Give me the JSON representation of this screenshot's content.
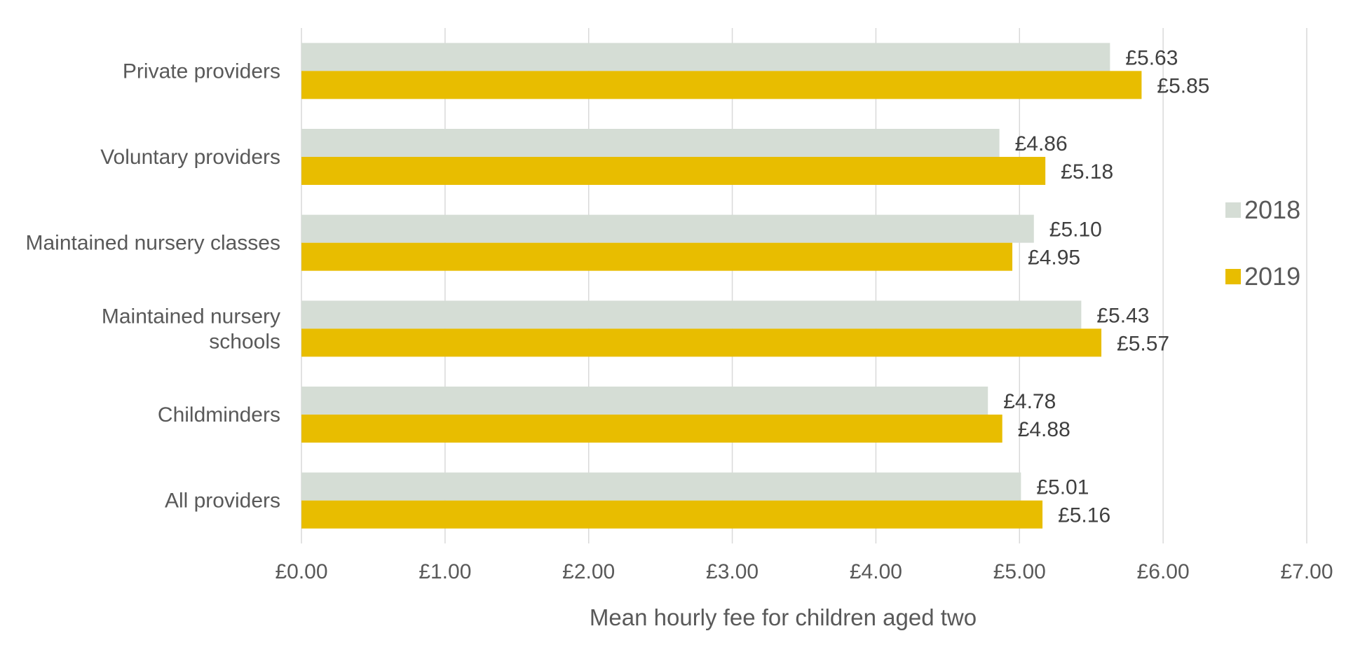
{
  "chart_data": {
    "type": "bar",
    "orientation": "horizontal",
    "categories": [
      "Private providers",
      "Voluntary providers",
      "Maintained nursery classes",
      "Maintained nursery schools",
      "Childminders",
      "All providers"
    ],
    "category_lines": [
      [
        "Private providers"
      ],
      [
        "Voluntary providers"
      ],
      [
        "Maintained nursery classes"
      ],
      [
        "Maintained nursery",
        "schools"
      ],
      [
        "Childminders"
      ],
      [
        "All providers"
      ]
    ],
    "series": [
      {
        "name": "2018",
        "color": "#d5ddd5",
        "values": [
          5.63,
          4.86,
          5.1,
          5.43,
          4.78,
          5.01
        ],
        "labels": [
          "£5.63",
          "£4.86",
          "£5.10",
          "£5.43",
          "£4.78",
          "£5.01"
        ]
      },
      {
        "name": "2019",
        "color": "#e8bd00",
        "values": [
          5.85,
          5.18,
          4.95,
          5.57,
          4.88,
          5.16
        ],
        "labels": [
          "£5.85",
          "£5.18",
          "£4.95",
          "£5.57",
          "£4.88",
          "£5.16"
        ]
      }
    ],
    "x_ticks": [
      "£0.00",
      "£1.00",
      "£2.00",
      "£3.00",
      "£4.00",
      "£5.00",
      "£6.00",
      "£7.00"
    ],
    "xlim": [
      0,
      7
    ],
    "xlabel": "Mean hourly fee for children aged two",
    "ylabel": "",
    "title": "",
    "grid": "vertical",
    "legend_position": "right",
    "gridline_color": "#d9d9d9"
  }
}
